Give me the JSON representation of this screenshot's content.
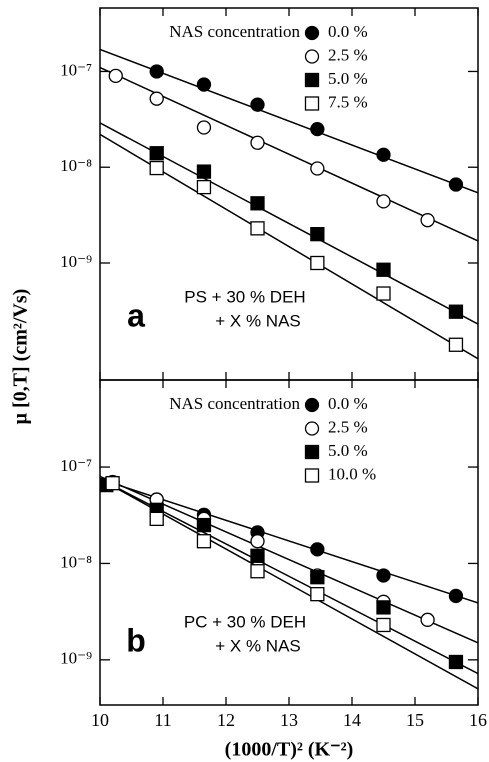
{
  "chart_data": [
    {
      "type": "scatter",
      "log_y": true,
      "ylabel": "μ [0,T] (cm²/Vs)",
      "legend_title": "NAS concentration",
      "legend_position": "upper right",
      "annotations": [
        "a",
        "PS + 30 % DEH",
        "+ X % NAS"
      ],
      "xlim": [
        10,
        16
      ],
      "xticks": [
        10,
        11,
        12,
        13,
        14,
        15,
        16
      ],
      "ylim": [
        6e-11,
        4.6e-07
      ],
      "yticks": [
        {
          "value": 1e-07,
          "label": "10⁻⁷"
        },
        {
          "value": 1e-08,
          "label": "10⁻⁸"
        },
        {
          "value": 1e-09,
          "label": "10⁻⁹"
        }
      ],
      "series": [
        {
          "name": "0.0 %",
          "color": "#000000",
          "marker": "circle",
          "x": [
            10.9,
            11.65,
            12.5,
            13.45,
            14.5,
            15.65
          ],
          "values": [
            1e-07,
            7.3e-08,
            4.5e-08,
            2.5e-08,
            1.35e-08,
            6.6e-09
          ],
          "fit": {
            "x": [
              10,
              16
            ],
            "values": [
              1.7e-07,
              5.4e-09
            ]
          }
        },
        {
          "name": "2.5 %",
          "color": "#000000",
          "marker": "circle-open",
          "x": [
            10.25,
            10.9,
            11.65,
            12.5,
            13.45,
            14.5,
            15.2
          ],
          "values": [
            9e-08,
            5.2e-08,
            2.6e-08,
            1.8e-08,
            9.7e-09,
            4.4e-09,
            2.8e-09
          ],
          "fit": {
            "x": [
              10,
              16
            ],
            "values": [
              1.1e-07,
              1.7e-09
            ]
          }
        },
        {
          "name": "5.0 %",
          "color": "#000000",
          "marker": "square",
          "x": [
            10.9,
            11.65,
            12.5,
            13.45,
            14.5,
            15.65
          ],
          "values": [
            1.4e-08,
            9e-09,
            4.2e-09,
            2e-09,
            8.5e-10,
            3.1e-10
          ],
          "fit": {
            "x": [
              10,
              16
            ],
            "values": [
              2.9e-08,
              2.3e-10
            ]
          }
        },
        {
          "name": "7.5 %",
          "color": "#000000",
          "marker": "square-open",
          "x": [
            10.9,
            11.65,
            12.5,
            13.45,
            14.5,
            15.65
          ],
          "values": [
            9.8e-09,
            6.2e-09,
            2.3e-09,
            1e-09,
            4.8e-10,
            1.4e-10
          ],
          "fit": {
            "x": [
              10,
              16
            ],
            "values": [
              2.2e-08,
              1e-10
            ]
          }
        }
      ]
    },
    {
      "type": "scatter",
      "log_y": true,
      "xlabel": "(1000/T)² (K⁻²)",
      "legend_title": "NAS concentration",
      "legend_position": "upper right",
      "annotations": [
        "b",
        "PC + 30 % DEH",
        "+ X % NAS"
      ],
      "xlim": [
        10,
        16
      ],
      "xticks": [
        10,
        11,
        12,
        13,
        14,
        15,
        16
      ],
      "ylim": [
        3.4e-10,
        8e-07
      ],
      "yticks": [
        {
          "value": 1e-07,
          "label": "10⁻⁷"
        },
        {
          "value": 1e-08,
          "label": "10⁻⁸"
        },
        {
          "value": 1e-09,
          "label": "10⁻⁹"
        }
      ],
      "series": [
        {
          "name": "0.0 %",
          "color": "#000000",
          "marker": "circle",
          "x": [
            10.15,
            10.9,
            11.65,
            12.5,
            13.45,
            14.5,
            15.65
          ],
          "values": [
            6.8e-08,
            4.6e-08,
            3.2e-08,
            2.1e-08,
            1.4e-08,
            7.5e-09,
            4.6e-09
          ],
          "fit": {
            "x": [
              10,
              16
            ],
            "values": [
              7.5e-08,
              3.9e-09
            ]
          }
        },
        {
          "name": "2.5 %",
          "color": "#000000",
          "marker": "circle-open",
          "x": [
            10.2,
            10.9,
            11.65,
            12.5,
            13.45,
            14.5,
            15.2
          ],
          "values": [
            7e-08,
            4.6e-08,
            2.9e-08,
            1.7e-08,
            7.5e-09,
            4e-09,
            2.6e-09
          ],
          "fit": {
            "x": [
              10,
              16
            ],
            "values": [
              8e-08,
              1.5e-09
            ]
          }
        },
        {
          "name": "5.0 %",
          "color": "#000000",
          "marker": "square",
          "x": [
            10.1,
            10.9,
            11.65,
            12.5,
            13.45,
            14.5,
            15.65
          ],
          "values": [
            6.5e-08,
            3.6e-08,
            2.5e-08,
            1.2e-08,
            7.2e-09,
            3.5e-09,
            9.5e-10
          ],
          "fit": {
            "x": [
              10,
              16
            ],
            "values": [
              7.5e-08,
              7.2e-10
            ]
          }
        },
        {
          "name": "10.0 %",
          "color": "#000000",
          "marker": "square-open",
          "x": [
            10.2,
            10.9,
            11.65,
            12.5,
            13.45,
            14.5
          ],
          "values": [
            6.8e-08,
            2.9e-08,
            1.7e-08,
            8.3e-09,
            4.8e-09,
            2.3e-09
          ],
          "fit": {
            "x": [
              10,
              16
            ],
            "values": [
              7.5e-08,
              5e-10
            ]
          }
        }
      ]
    }
  ]
}
